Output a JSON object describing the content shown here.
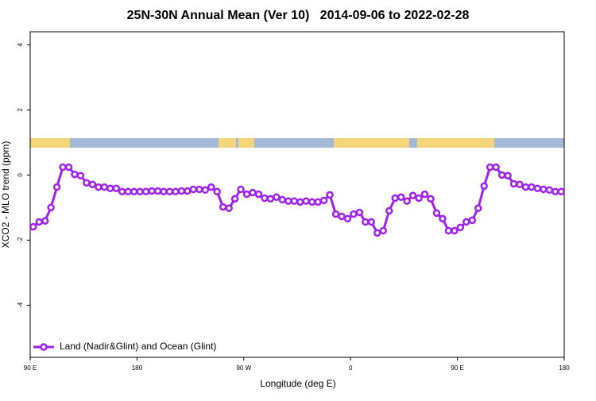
{
  "chart_data": {
    "type": "line",
    "title": "25N-30N Annual Mean (Ver 10)   2014-09-06 to 2022-02-28",
    "x_label": "Longitude (deg E)",
    "y_label": "XCO2 - MLO trend (ppm)",
    "xlim": [
      90,
      540
    ],
    "ylim": [
      -5.6,
      4.4
    ],
    "xticks": [
      {
        "value": 90,
        "label": "90 E"
      },
      {
        "value": 180,
        "label": "180"
      },
      {
        "value": 270,
        "label": "90 W"
      },
      {
        "value": 360,
        "label": "0"
      },
      {
        "value": 450,
        "label": "90 E"
      },
      {
        "value": 540,
        "label": "180"
      }
    ],
    "yticks": [
      4,
      2,
      0,
      -2,
      -4
    ],
    "legend": "lower left",
    "x": [
      92.5,
      97.5,
      102.5,
      107.5,
      112.5,
      117.5,
      122.5,
      127.5,
      132.5,
      137.5,
      142.5,
      147.5,
      152.5,
      157.5,
      162.5,
      167.5,
      172.5,
      177.5,
      182.5,
      187.5,
      192.5,
      197.5,
      202.5,
      207.5,
      212.5,
      217.5,
      222.5,
      227.5,
      232.5,
      237.5,
      242.5,
      247.5,
      252.5,
      257.5,
      262.5,
      267.5,
      272.5,
      277.5,
      282.5,
      287.5,
      292.5,
      297.5,
      302.5,
      307.5,
      312.5,
      317.5,
      322.5,
      327.5,
      332.5,
      337.5,
      342.5,
      347.5,
      352.5,
      357.5,
      362.5,
      367.5,
      372.5,
      377.5,
      382.5,
      387.5,
      392.5,
      397.5,
      402.5,
      407.5,
      412.5,
      417.5,
      422.5,
      427.5,
      432.5,
      437.5,
      442.5,
      447.5,
      452.5,
      457.5,
      462.5,
      467.5,
      472.5,
      477.5,
      482.5,
      487.5,
      492.5,
      497.5,
      502.5,
      507.5,
      512.5,
      517.5,
      522.5,
      527.5,
      532.5,
      537.5
    ],
    "series": [
      {
        "name": "Land (Nadir&Glint) and Ocean (Glint)",
        "color": "#a020f0",
        "values": [
          -1.59,
          -1.44,
          -1.41,
          -1.0,
          -0.37,
          0.24,
          0.24,
          0.02,
          -0.02,
          -0.24,
          -0.29,
          -0.37,
          -0.37,
          -0.41,
          -0.41,
          -0.51,
          -0.51,
          -0.51,
          -0.51,
          -0.51,
          -0.49,
          -0.49,
          -0.51,
          -0.51,
          -0.51,
          -0.49,
          -0.49,
          -0.44,
          -0.44,
          -0.46,
          -0.37,
          -0.51,
          -0.98,
          -1.02,
          -0.73,
          -0.44,
          -0.59,
          -0.54,
          -0.59,
          -0.71,
          -0.73,
          -0.68,
          -0.76,
          -0.8,
          -0.8,
          -0.83,
          -0.8,
          -0.83,
          -0.83,
          -0.78,
          -0.61,
          -1.2,
          -1.27,
          -1.34,
          -1.2,
          -1.15,
          -1.44,
          -1.44,
          -1.78,
          -1.71,
          -1.1,
          -0.71,
          -0.68,
          -0.8,
          -0.63,
          -0.71,
          -0.59,
          -0.73,
          -1.17,
          -1.34,
          -1.71,
          -1.71,
          -1.61,
          -1.44,
          -1.39,
          -1.02,
          -0.34,
          0.24,
          0.24,
          0,
          -0.02,
          -0.27,
          -0.29,
          -0.37,
          -0.37,
          -0.41,
          -0.44,
          -0.46,
          -0.51,
          -0.51
        ]
      }
    ]
  }
}
